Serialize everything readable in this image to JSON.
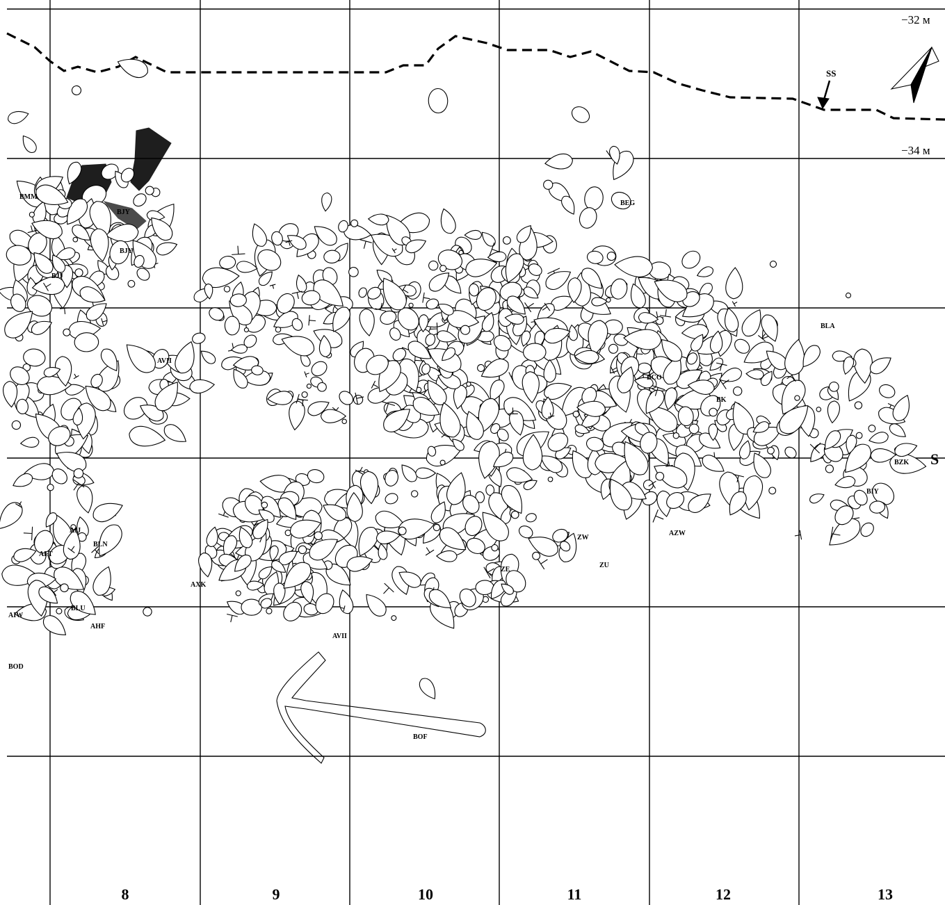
{
  "grid": {
    "column_labels": [
      "8",
      "9",
      "10",
      "11",
      "12",
      "13"
    ],
    "depth_labels": [
      "−32 м",
      "−34 м"
    ],
    "axis_label": "S"
  },
  "markers": {
    "ss_label": "SS"
  },
  "sector_labels": [
    "BMM",
    "BJY",
    "BJY",
    "BJJ",
    "BEG",
    "AVII",
    "BLA",
    "BCO",
    "BK",
    "BZK",
    "BIY",
    "AIJ",
    "BLN",
    "ALT",
    "AXK",
    "AZW",
    "ZW",
    "ZE",
    "ZU",
    "BLU",
    "AIW",
    "AHF",
    "BOD",
    "AVII",
    "BOF"
  ],
  "colors": {
    "ink": "#000000",
    "paper": "#ffffff"
  }
}
